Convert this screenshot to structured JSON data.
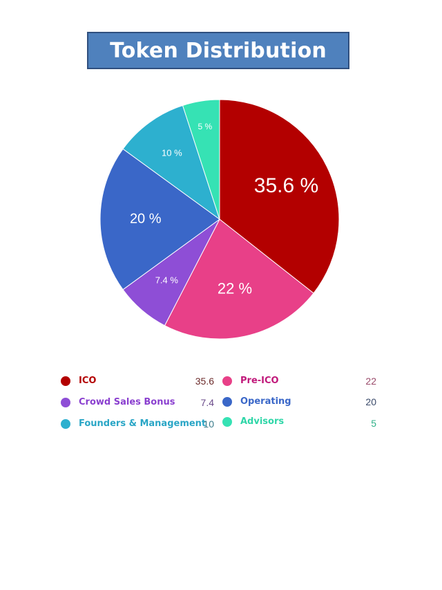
{
  "chart_data": {
    "type": "pie",
    "title": "Token Distribution",
    "slices": [
      {
        "label": "ICO",
        "value": 35.6,
        "display": "35.6 %",
        "color": "#b30000"
      },
      {
        "label": "Pre-ICO",
        "value": 22,
        "display": "22 %",
        "color": "#e84088"
      },
      {
        "label": "Crowd Sales Bonus",
        "value": 7.4,
        "display": "7.4 %",
        "color": "#8e4ed6"
      },
      {
        "label": "Operating",
        "value": 20,
        "display": "20 %",
        "color": "#3a67c8"
      },
      {
        "label": "Founders & Management",
        "value": 10,
        "display": "10 %",
        "color": "#2db0cf"
      },
      {
        "label": "Advisors",
        "value": 5,
        "display": "5 %",
        "color": "#36e2b4"
      }
    ]
  },
  "legend": {
    "items": [
      {
        "label": "ICO",
        "value": "35.6",
        "label_color": "#b30000",
        "value_color": "#6b2a2a",
        "dot_color": "#b30000"
      },
      {
        "label": "Pre-ICO",
        "value": "22",
        "label_color": "#c0187a",
        "value_color": "#9a4a6a",
        "dot_color": "#e84088"
      },
      {
        "label": "Crowd Sales Bonus",
        "value": "7.4",
        "label_color": "#8a3fcf",
        "value_color": "#6a4a8a",
        "dot_color": "#8e4ed6"
      },
      {
        "label": "Operating",
        "value": "20",
        "label_color": "#3a67c8",
        "value_color": "#3a4a6a",
        "dot_color": "#3a67c8"
      },
      {
        "label": "Founders & Management",
        "value": "10",
        "label_color": "#2aa6c6",
        "value_color": "#3a7a8a",
        "dot_color": "#2db0cf"
      },
      {
        "label": "Advisors",
        "value": "5",
        "label_color": "#2fd6a8",
        "value_color": "#2fb088",
        "dot_color": "#36e2b4"
      }
    ]
  }
}
